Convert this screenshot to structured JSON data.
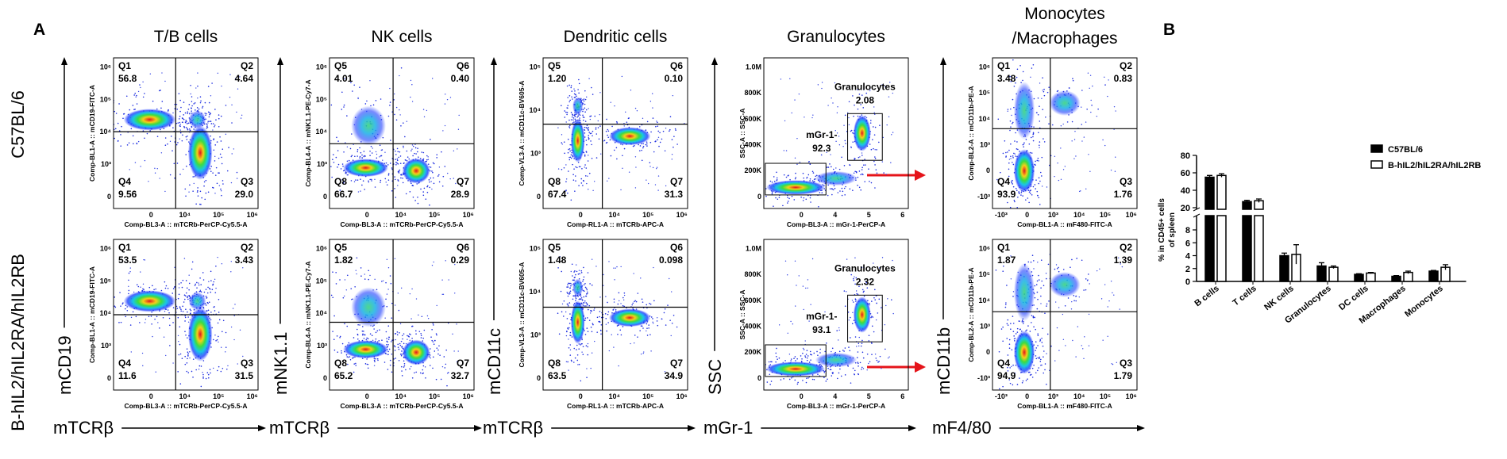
{
  "panel_a": {
    "label": "A",
    "row_labels": [
      "C57BL/6",
      "B-hIL2/hIL2RA/hIL2RB"
    ],
    "columns": [
      {
        "title": [
          "T/B cells"
        ],
        "y_marker": "mCD19",
        "x_marker": "mTCRβ",
        "x_axis_title": "Comp-BL3-A :: mTCRb-PerCP-Cy5.5-A",
        "y_axis_title": "Comp-BL1-A :: mCD19-FITC-A",
        "x_tick_labels": [
          "0",
          "10⁴",
          "10⁵",
          "10⁶"
        ],
        "y_tick_labels": [
          "10⁶",
          "10⁵",
          "10⁴",
          "10³",
          "0"
        ],
        "plots": [
          {
            "gates": [
              {
                "name": "Q1",
                "value": "56.8"
              },
              {
                "name": "Q2",
                "value": "4.64"
              },
              {
                "name": "Q3",
                "value": "29.0"
              },
              {
                "name": "Q4",
                "value": "9.56"
              }
            ]
          },
          {
            "gates": [
              {
                "name": "Q1",
                "value": "53.5"
              },
              {
                "name": "Q2",
                "value": "3.43"
              },
              {
                "name": "Q3",
                "value": "31.5"
              },
              {
                "name": "Q4",
                "value": "11.6"
              }
            ]
          }
        ]
      },
      {
        "title": [
          "NK cells"
        ],
        "y_marker": "mNK1.1",
        "x_marker": "mTCRβ",
        "x_axis_title": "Comp-BL3-A :: mTCRb-PerCP-Cy5.5-A",
        "y_axis_title": "Comp-BL4-A :: mNK1.1-PE-Cy7-A",
        "x_tick_labels": [
          "0",
          "10⁴",
          "10⁵",
          "10⁶"
        ],
        "y_tick_labels": [
          "10⁶",
          "10⁵",
          "10⁴",
          "10³",
          "0"
        ],
        "plots": [
          {
            "gates": [
              {
                "name": "Q5",
                "value": "4.01"
              },
              {
                "name": "Q6",
                "value": "0.40"
              },
              {
                "name": "Q7",
                "value": "28.9"
              },
              {
                "name": "Q8",
                "value": "66.7"
              }
            ]
          },
          {
            "gates": [
              {
                "name": "Q5",
                "value": "1.82"
              },
              {
                "name": "Q6",
                "value": "0.29"
              },
              {
                "name": "Q7",
                "value": "32.7"
              },
              {
                "name": "Q8",
                "value": "65.2"
              }
            ]
          }
        ]
      },
      {
        "title": [
          "Dendritic cells"
        ],
        "y_marker": "mCD11c",
        "x_marker": "mTCRβ",
        "x_axis_title": "Comp-RL1-A :: mTCRb-APC-A",
        "y_axis_title": "Comp-VL3-A :: mCD11c-BV605-A",
        "x_tick_labels": [
          "0",
          "10⁴",
          "10⁵",
          "10⁶"
        ],
        "y_tick_labels": [
          "10⁵",
          "10⁴",
          "10³",
          "0"
        ],
        "plots": [
          {
            "gates": [
              {
                "name": "Q5",
                "value": "1.20"
              },
              {
                "name": "Q6",
                "value": "0.10"
              },
              {
                "name": "Q7",
                "value": "31.3"
              },
              {
                "name": "Q8",
                "value": "67.4"
              }
            ]
          },
          {
            "gates": [
              {
                "name": "Q5",
                "value": "1.48"
              },
              {
                "name": "Q6",
                "value": "0.098"
              },
              {
                "name": "Q7",
                "value": "34.9"
              },
              {
                "name": "Q8",
                "value": "63.5"
              }
            ]
          }
        ]
      },
      {
        "title": [
          "Granulocytes"
        ],
        "y_marker": "SSC",
        "x_marker": "mGr-1",
        "x_axis_title": "Comp-BL3-A :: mGr-1-PerCP-A",
        "y_axis_title": "SSC-A :: SSC-A",
        "x_tick_labels": [
          "0",
          "4",
          "5",
          "6"
        ],
        "y_tick_labels": [
          "1.0M",
          "800K",
          "600K",
          "400K",
          "200K",
          "0"
        ],
        "plots": [
          {
            "gates": [
              {
                "name": "Granulocytes",
                "value": "2.08"
              },
              {
                "name": "mGr-1-",
                "value": "92.3"
              }
            ]
          },
          {
            "gates": [
              {
                "name": "Granulocytes",
                "value": "2.32"
              },
              {
                "name": "mGr-1-",
                "value": "93.1"
              }
            ]
          }
        ]
      },
      {
        "title": [
          "Monocytes",
          "/Macrophages"
        ],
        "y_marker": "mCD11b",
        "x_marker": "mF4/80",
        "x_axis_title": "Comp-BL1-A :: mF480-FITC-A",
        "y_axis_title": "Comp-BL2-A :: mCD11b-PE-A",
        "x_tick_labels": [
          "-10³",
          "0",
          "10³",
          "10⁴",
          "10⁵",
          "10⁶"
        ],
        "y_tick_labels": [
          "10⁶",
          "10⁵",
          "10⁴",
          "10³",
          "0",
          "-10³"
        ],
        "plots": [
          {
            "gates": [
              {
                "name": "Q1",
                "value": "3.48"
              },
              {
                "name": "Q2",
                "value": "0.83"
              },
              {
                "name": "Q3",
                "value": "1.76"
              },
              {
                "name": "Q4",
                "value": "93.9"
              }
            ]
          },
          {
            "gates": [
              {
                "name": "Q1",
                "value": "1.87"
              },
              {
                "name": "Q2",
                "value": "1.39"
              },
              {
                "name": "Q3",
                "value": "1.79"
              },
              {
                "name": "Q4",
                "value": "94.9"
              }
            ]
          }
        ]
      }
    ]
  },
  "chart_data": {
    "type": "bar",
    "label": "B",
    "y_label": [
      "% in CD45+ cells",
      "of spleen"
    ],
    "categories": [
      "B cells",
      "T cells",
      "NK cells",
      "Granulocytes",
      "DC cells",
      "Macrophages",
      "Monocytes"
    ],
    "series": [
      {
        "name": "C57BL/6",
        "color": "#000000",
        "values": [
          55,
          27,
          4.0,
          2.4,
          1.1,
          0.8,
          1.6
        ],
        "errors": [
          2,
          1.5,
          0.4,
          0.5,
          0.1,
          0.1,
          0.1
        ]
      },
      {
        "name": "B-hIL2/hIL2RA/hIL2RB",
        "color": "#ffffff",
        "values": [
          57,
          28,
          4.2,
          2.2,
          1.3,
          1.4,
          2.2
        ],
        "errors": [
          2,
          2,
          1.5,
          0.2,
          0.1,
          0.2,
          0.4
        ]
      }
    ],
    "ylim": [
      0,
      80
    ],
    "axis_break": [
      8,
      20
    ],
    "yticks": [
      0,
      2,
      4,
      6,
      8,
      20,
      40,
      60,
      80
    ]
  }
}
